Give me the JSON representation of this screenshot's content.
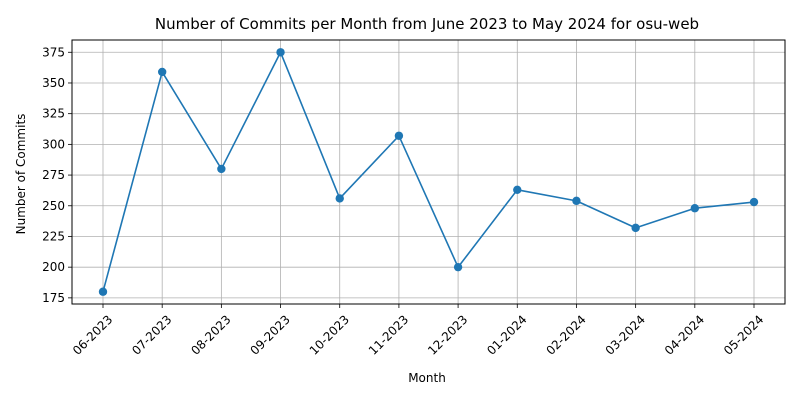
{
  "chart_data": {
    "type": "line",
    "title": "Number of Commits per Month from June 2023 to May 2024 for osu-web",
    "xlabel": "Month",
    "ylabel": "Number of Commits",
    "categories": [
      "06-2023",
      "07-2023",
      "08-2023",
      "09-2023",
      "10-2023",
      "11-2023",
      "12-2023",
      "01-2024",
      "02-2024",
      "03-2024",
      "04-2024",
      "05-2024"
    ],
    "series": [
      {
        "values": [
          180,
          359,
          280,
          375,
          256,
          307,
          200,
          263,
          254,
          232,
          248,
          253
        ]
      }
    ],
    "ylim": [
      170,
      385
    ],
    "yticks": [
      175,
      200,
      225,
      250,
      275,
      300,
      325,
      350,
      375
    ],
    "grid": true,
    "marker": "circle",
    "line_color": "#1f77b4"
  }
}
